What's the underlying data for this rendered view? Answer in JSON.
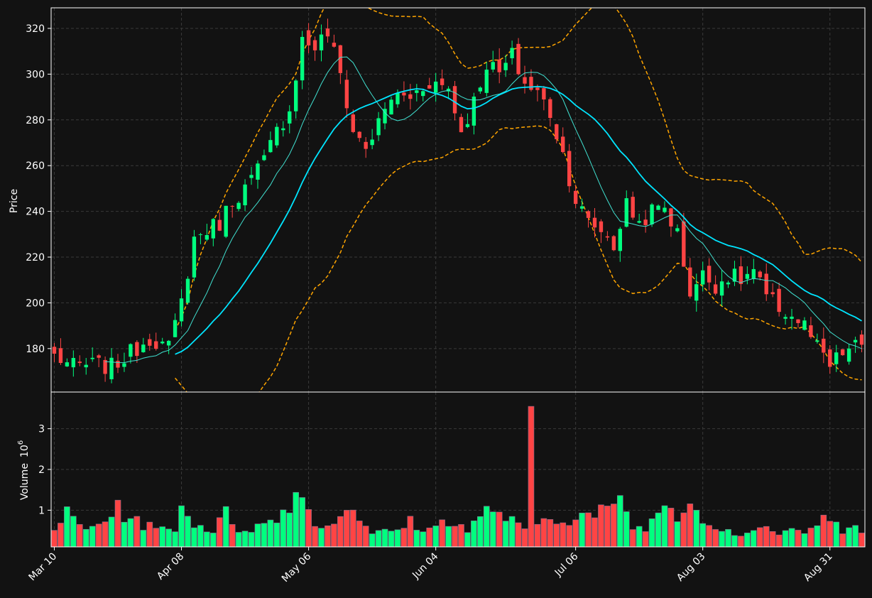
{
  "chart_data": {
    "type": "candlestick",
    "price_panel": {
      "ylabel": "Price",
      "ylim": [
        161,
        329
      ],
      "yticks": [
        180,
        200,
        220,
        240,
        260,
        280,
        300,
        320
      ]
    },
    "volume_panel": {
      "ylabel": "Volume",
      "ylabel_exponent": "10",
      "ylabel_power": "6",
      "ylim": [
        0.1,
        3.9
      ],
      "yticks": [
        1,
        2,
        3
      ]
    },
    "xlim": [
      -0.5,
      127.5
    ],
    "xticks": [
      {
        "index": 0,
        "label": "Mar 10"
      },
      {
        "index": 20,
        "label": "Apr 08"
      },
      {
        "index": 40,
        "label": "May 06"
      },
      {
        "index": 60,
        "label": "Jun 04"
      },
      {
        "index": 82,
        "label": "Jul 06"
      },
      {
        "index": 102,
        "label": "Aug 03"
      },
      {
        "index": 122,
        "label": "Aug 31"
      }
    ],
    "grid": true,
    "colors": {
      "background": "#121212",
      "up": "#00ff7f",
      "down": "#ff4444",
      "grid": "#3a3a3a",
      "ma_short": "#40e0d0",
      "ma_long": "#00e5ff",
      "bands": "#ffa500",
      "text": "#ffffff"
    },
    "ohlc_anchors": [
      [
        0,
        177
      ],
      [
        3,
        172
      ],
      [
        6,
        173
      ],
      [
        9,
        172
      ],
      [
        12,
        178
      ],
      [
        15,
        185
      ],
      [
        18,
        180
      ],
      [
        20,
        200
      ],
      [
        22,
        228
      ],
      [
        24,
        232
      ],
      [
        26,
        235
      ],
      [
        28,
        245
      ],
      [
        30,
        250
      ],
      [
        33,
        262
      ],
      [
        35,
        275
      ],
      [
        37,
        285
      ],
      [
        39,
        315
      ],
      [
        41,
        312
      ],
      [
        43,
        318
      ],
      [
        45,
        300
      ],
      [
        47,
        275
      ],
      [
        49,
        268
      ],
      [
        51,
        278
      ],
      [
        53,
        290
      ],
      [
        56,
        290
      ],
      [
        59,
        297
      ],
      [
        62,
        294
      ],
      [
        64,
        275
      ],
      [
        66,
        288
      ],
      [
        68,
        305
      ],
      [
        70,
        300
      ],
      [
        72,
        308
      ],
      [
        74,
        296
      ],
      [
        76,
        292
      ],
      [
        78,
        283
      ],
      [
        80,
        265
      ],
      [
        82,
        245
      ],
      [
        84,
        235
      ],
      [
        86,
        232
      ],
      [
        88,
        225
      ],
      [
        90,
        243
      ],
      [
        92,
        235
      ],
      [
        94,
        240
      ],
      [
        96,
        242
      ],
      [
        98,
        230
      ],
      [
        100,
        205
      ],
      [
        102,
        212
      ],
      [
        104,
        208
      ],
      [
        106,
        212
      ],
      [
        108,
        210
      ],
      [
        110,
        214
      ],
      [
        112,
        202
      ],
      [
        114,
        198
      ],
      [
        116,
        194
      ],
      [
        118,
        190
      ],
      [
        120,
        180
      ],
      [
        122,
        172
      ],
      [
        124,
        178
      ],
      [
        127,
        182
      ]
    ],
    "volume_anchors": [
      [
        0,
        0.6
      ],
      [
        2,
        0.9
      ],
      [
        5,
        0.5
      ],
      [
        8,
        0.8
      ],
      [
        10,
        1.0
      ],
      [
        13,
        0.75
      ],
      [
        16,
        0.5
      ],
      [
        19,
        0.6
      ],
      [
        20,
        1.05
      ],
      [
        22,
        0.7
      ],
      [
        25,
        0.5
      ],
      [
        27,
        0.9
      ],
      [
        29,
        0.55
      ],
      [
        32,
        0.6
      ],
      [
        35,
        0.75
      ],
      [
        38,
        1.45
      ],
      [
        40,
        1.1
      ],
      [
        42,
        0.5
      ],
      [
        44,
        0.8
      ],
      [
        47,
        1.1
      ],
      [
        50,
        0.45
      ],
      [
        53,
        0.45
      ],
      [
        56,
        0.7
      ],
      [
        59,
        0.5
      ],
      [
        62,
        0.8
      ],
      [
        65,
        0.5
      ],
      [
        69,
        1.1
      ],
      [
        71,
        0.8
      ],
      [
        74,
        0.5
      ],
      [
        75,
        3.5
      ],
      [
        76,
        0.7
      ],
      [
        79,
        0.85
      ],
      [
        82,
        0.8
      ],
      [
        85,
        0.9
      ],
      [
        88,
        1.0
      ],
      [
        89,
        1.55
      ],
      [
        91,
        0.5
      ],
      [
        94,
        0.7
      ],
      [
        96,
        1.25
      ],
      [
        98,
        0.8
      ],
      [
        100,
        1.5
      ],
      [
        102,
        0.7
      ],
      [
        105,
        0.6
      ],
      [
        108,
        0.4
      ],
      [
        111,
        0.6
      ],
      [
        114,
        0.45
      ],
      [
        117,
        0.45
      ],
      [
        119,
        0.55
      ],
      [
        121,
        0.75
      ],
      [
        124,
        0.55
      ],
      [
        126,
        0.8
      ],
      [
        127,
        0.55
      ]
    ],
    "volume_spike": {
      "index": 75,
      "value": 3.55
    },
    "moving_averages": [
      {
        "window": 9,
        "color": "#40e0d0",
        "width": 1
      },
      {
        "window": 20,
        "color": "#00e5ff",
        "width": 1.8
      }
    ],
    "bollinger": {
      "window": 20,
      "k": 2,
      "color": "#ffa500"
    }
  }
}
